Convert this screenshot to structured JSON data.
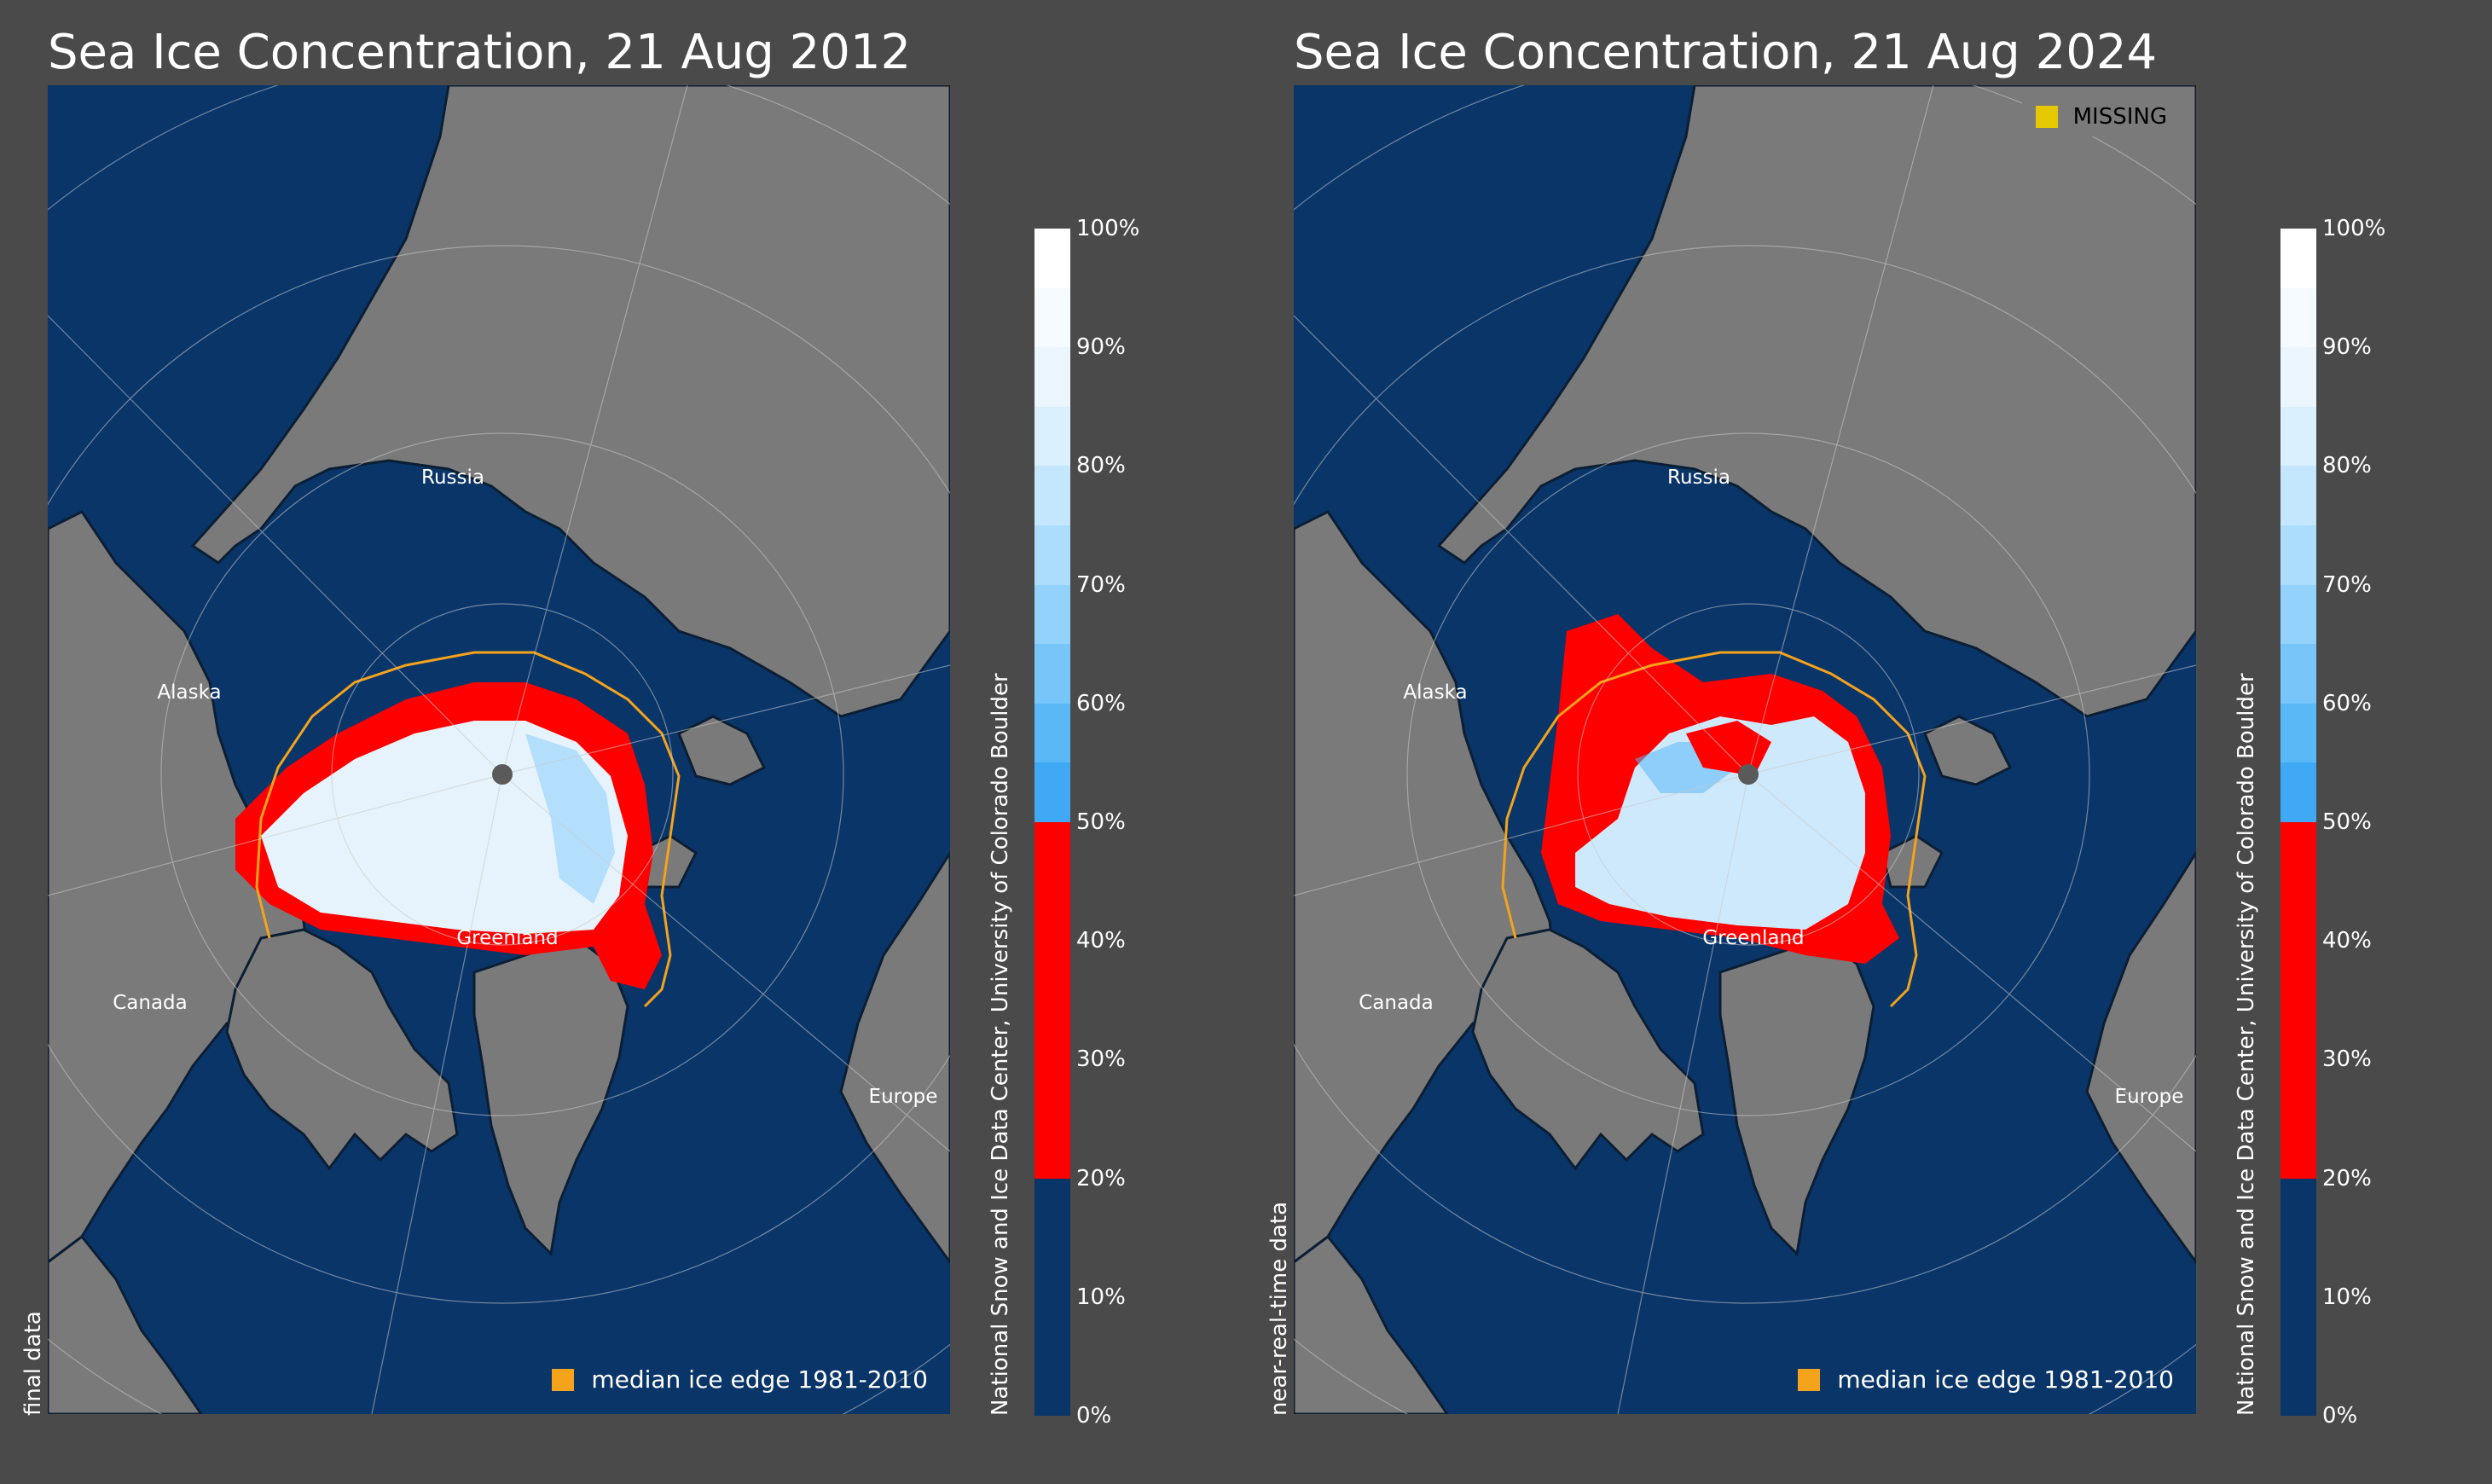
{
  "panels": [
    {
      "title": "Sea Ice Concentration, 21 Aug 2012",
      "data_status": "final data",
      "missing_legend": null,
      "places": {
        "russia": "Russia",
        "alaska": "Alaska",
        "greenland": "Greenland",
        "canada": "Canada",
        "europe": "Europe"
      },
      "median_legend": "median ice edge 1981-2010",
      "credit": "National Snow and Ice Data Center, University of Colorado Boulder"
    },
    {
      "title": "Sea Ice Concentration, 21 Aug 2024",
      "data_status": "near-real-time data",
      "missing_legend": "MISSING",
      "places": {
        "russia": "Russia",
        "alaska": "Alaska",
        "greenland": "Greenland",
        "canada": "Canada",
        "europe": "Europe"
      },
      "median_legend": "median ice edge 1981-2010",
      "credit": "National Snow and Ice Data Center, University of Colorado Boulder"
    }
  ],
  "colorbar": {
    "ticks": [
      "0%",
      "10%",
      "20%",
      "30%",
      "40%",
      "50%",
      "60%",
      "70%",
      "80%",
      "90%",
      "100%"
    ],
    "colors": {
      "open_water": "#0a3569",
      "low_concentration": "#ff0000",
      "high_concentration_scale": [
        "#3fa9f5",
        "#5bb8f7",
        "#78c6f9",
        "#93d2fb",
        "#acddfc",
        "#c5e7fd",
        "#dbf0fe",
        "#ebf6fe",
        "#f6fbff",
        "#ffffff"
      ],
      "land": "#7a7a7a",
      "median_edge": "#f5a31a",
      "missing": "#e6c800",
      "background": "#4a4a4a"
    }
  }
}
